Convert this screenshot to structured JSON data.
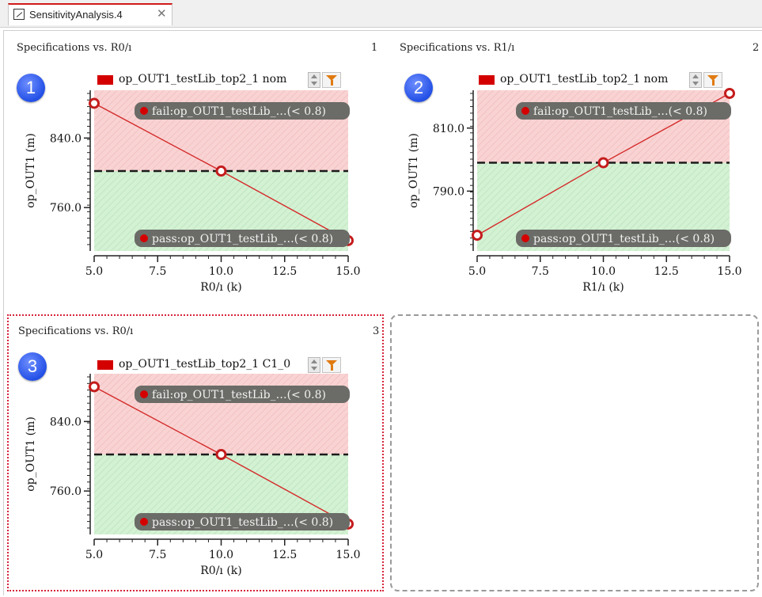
{
  "tab": {
    "label": "SensitivityAnalysis.4",
    "close": "✕"
  },
  "panels": [
    {
      "id": 1,
      "badge": "1",
      "title": "Specifications vs. R0/ı",
      "number": "1",
      "legend": "op_OUT1_testLib_top2_1 nom"
    },
    {
      "id": 2,
      "badge": "2",
      "title": "Specifications vs. R1/ı",
      "number": "2",
      "legend": "op_OUT1_testLib_top2_1 nom"
    },
    {
      "id": 3,
      "badge": "3",
      "title": "Specifications vs. R0/ı",
      "number": "3",
      "legend": "op_OUT1_testLib_top2_1 C1_0"
    }
  ],
  "colors": {
    "line": "#d42a2a",
    "fail_region": "#f9d3d3",
    "pass_region": "#d3f1d3",
    "tag_bg": "#6b6b67",
    "selected_border": "#d6243a"
  },
  "chart_data": [
    {
      "type": "line",
      "xlabel": "R0/ı (k)",
      "ylabel": "op_OUT1 (m)",
      "x": [
        5.0,
        10.0,
        15.0
      ],
      "y": [
        880,
        802,
        722
      ],
      "xlim": [
        5.0,
        15.0
      ],
      "ylim": [
        710,
        895
      ],
      "xticks": [
        5.0,
        7.5,
        10.0,
        12.5,
        15.0
      ],
      "yticks": [
        760.0,
        840.0
      ],
      "xtick_labels": [
        "5.0",
        "7.5",
        "10.0",
        "12.5",
        "15.0"
      ],
      "ytick_labels": [
        "760.0",
        "840.0"
      ],
      "spec_threshold": 802,
      "annotations": {
        "fail": "fail:op_OUT1_testLib_…(< 0.8)",
        "pass": "pass:op_OUT1_testLib_…(< 0.8)"
      }
    },
    {
      "type": "line",
      "xlabel": "R1/ı (k)",
      "ylabel": "op_OUT1 (m)",
      "x": [
        5.0,
        10.0,
        15.0
      ],
      "y": [
        776,
        799,
        821
      ],
      "xlim": [
        5.0,
        15.0
      ],
      "ylim": [
        771,
        822
      ],
      "xticks": [
        5.0,
        7.5,
        10.0,
        12.5,
        15.0
      ],
      "yticks": [
        790.0,
        810.0
      ],
      "xtick_labels": [
        "5.0",
        "7.5",
        "10.0",
        "12.5",
        "15.0"
      ],
      "ytick_labels": [
        "790.0",
        "810.0"
      ],
      "spec_threshold": 799,
      "annotations": {
        "fail": "fail:op_OUT1_testLib_…(< 0.8)",
        "pass": "pass:op_OUT1_testLib_…(< 0.8)"
      }
    },
    {
      "type": "line",
      "xlabel": "R0/ı (k)",
      "ylabel": "op_OUT1 (m)",
      "x": [
        5.0,
        10.0,
        15.0
      ],
      "y": [
        880,
        802,
        722
      ],
      "xlim": [
        5.0,
        15.0
      ],
      "ylim": [
        710,
        895
      ],
      "xticks": [
        5.0,
        7.5,
        10.0,
        12.5,
        15.0
      ],
      "yticks": [
        760.0,
        840.0
      ],
      "xtick_labels": [
        "5.0",
        "7.5",
        "10.0",
        "12.5",
        "15.0"
      ],
      "ytick_labels": [
        "760.0",
        "840.0"
      ],
      "spec_threshold": 802,
      "annotations": {
        "fail": "fail:op_OUT1_testLib_…(< 0.8)",
        "pass": "pass:op_OUT1_testLib_…(< 0.8)"
      }
    }
  ]
}
